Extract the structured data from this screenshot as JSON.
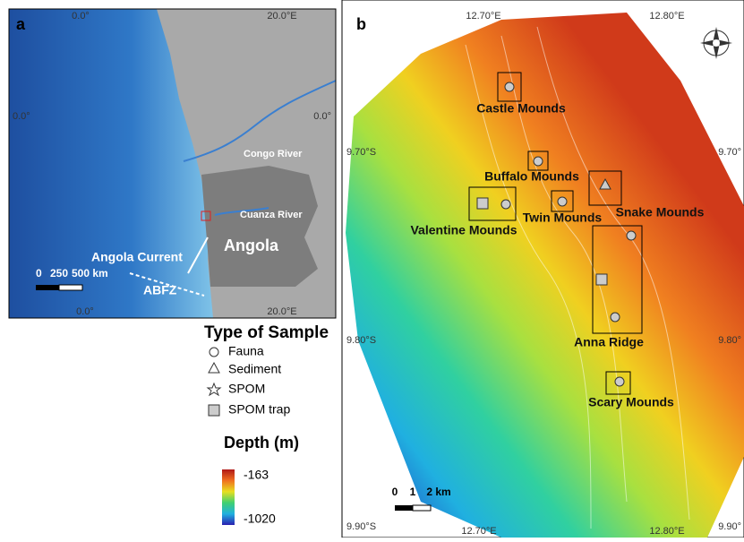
{
  "panel_a": {
    "label": "a",
    "top_left_lon": "0.0°",
    "top_right_lon": "20.0°E",
    "left_lat": "0.0°",
    "right_lat": "0.0°",
    "bottom_left_lon": "0.0°",
    "bottom_right_lon": "20.0°E",
    "congo": "Congo River",
    "cuanza": "Cuanza River",
    "country": "Angola",
    "current": "Angola Current",
    "abfz": "ABFZ",
    "scale": [
      "0",
      "250",
      "500 km"
    ]
  },
  "panel_b": {
    "label": "b",
    "top_lon_1": "12.70°E",
    "top_lon_2": "12.80°E",
    "left_lat_1": "9.70°S",
    "right_lat_1": "9.70°",
    "left_lat_2": "9.80°S",
    "right_lat_2": "9.80°",
    "left_lat_3": "9.90°S",
    "bottom_lon_1": "12.70°E",
    "bottom_lon_2": "12.80°E",
    "right_lat_3": "9.90°",
    "sites": [
      "Castle Mounds",
      "Buffalo Mounds",
      "Twin Mounds",
      "Snake Mounds",
      "Valentine Mounds",
      "Anna Ridge",
      "Scary Mounds"
    ],
    "scale": [
      "0",
      "1",
      "2 km"
    ]
  },
  "legend": {
    "title": "Type of Sample",
    "items": [
      "Fauna",
      "Sediment",
      "SPOM",
      "SPOM trap"
    ],
    "depth_title": "Depth (m)",
    "depth_max": "-163",
    "depth_min": "-1020"
  }
}
